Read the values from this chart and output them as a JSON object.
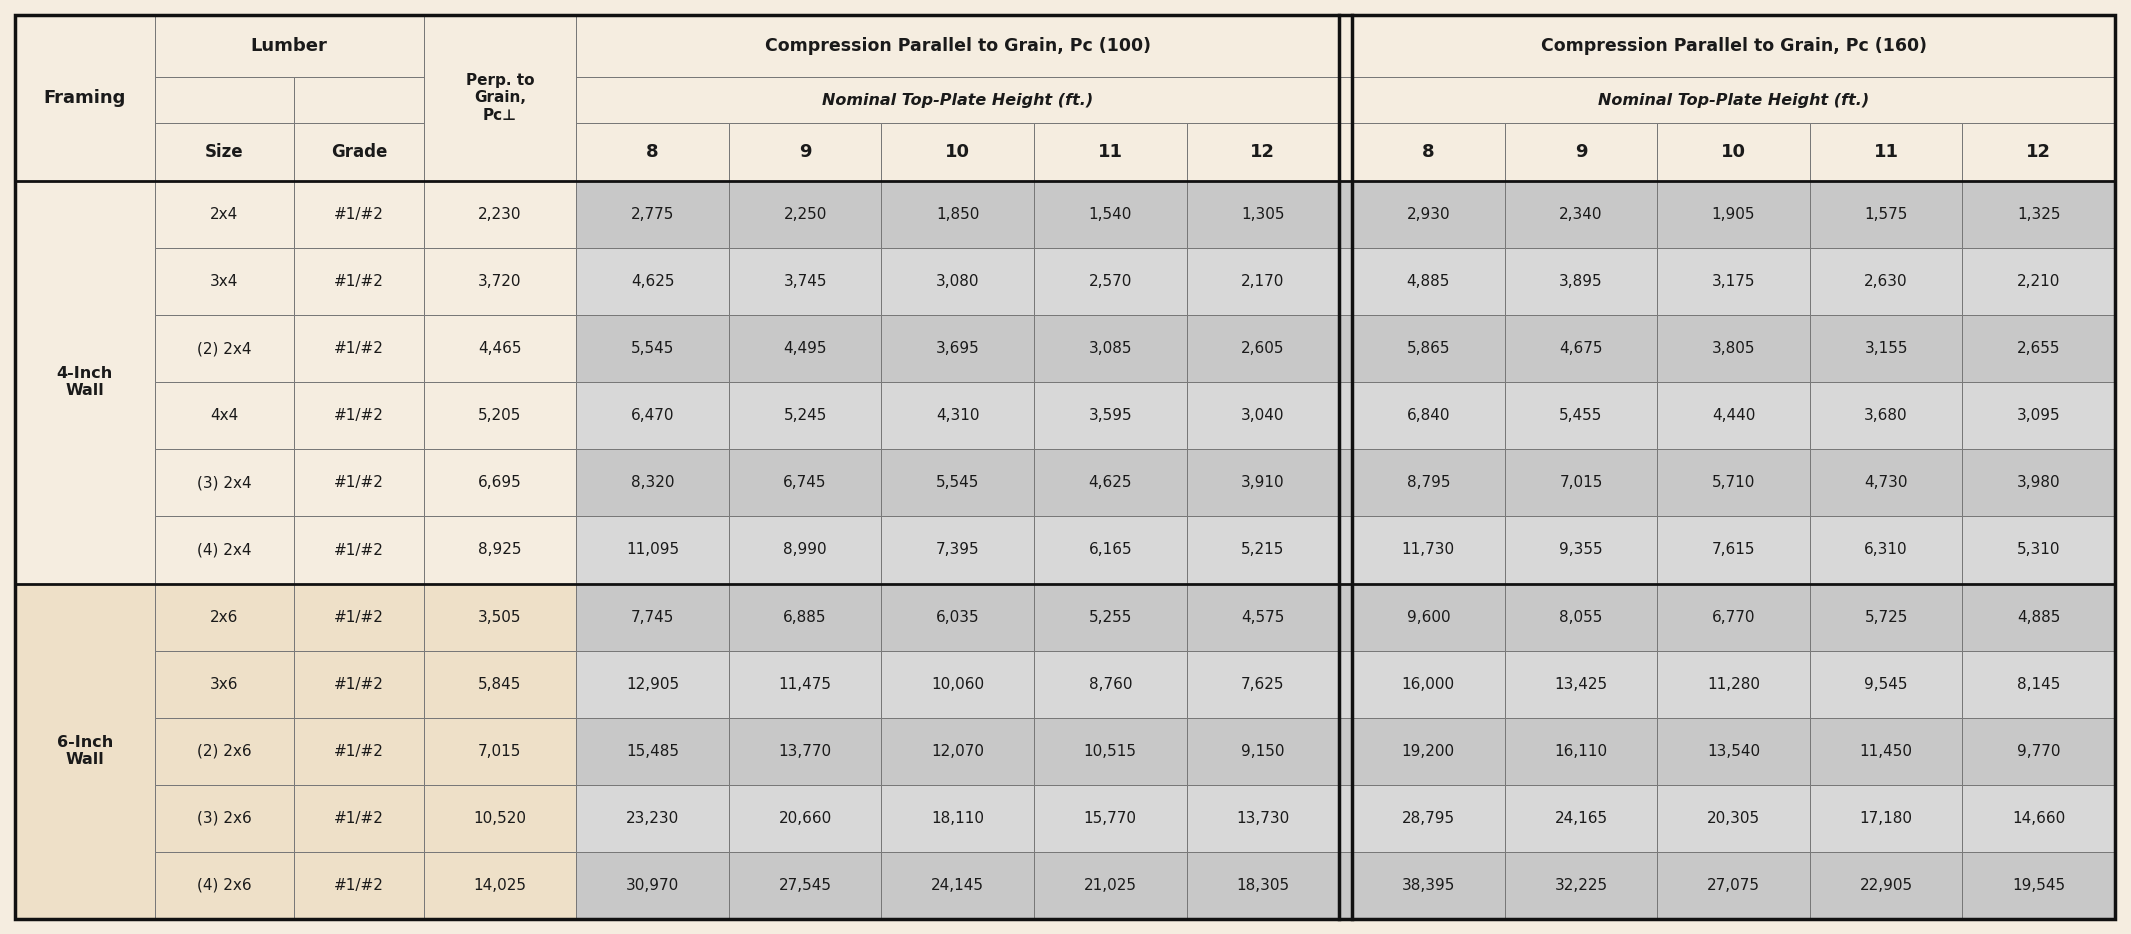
{
  "bg_cream": "#f5ede0",
  "bg_cream_dark": "#eee0c8",
  "bg_gray1": "#c8c8c8",
  "bg_gray2": "#d8d8d8",
  "border_dark": "#333333",
  "border_mid": "#888888",
  "text_dark": "#1a1a1a",
  "framing_groups": [
    {
      "label": "4-Inch\nWall",
      "rows": [
        {
          "size": "2x4",
          "grade": "#1/#2",
          "perp": "2,230",
          "pc100": [
            "2,775",
            "2,250",
            "1,850",
            "1,540",
            "1,305"
          ],
          "pc160": [
            "2,930",
            "2,340",
            "1,905",
            "1,575",
            "1,325"
          ]
        },
        {
          "size": "3x4",
          "grade": "#1/#2",
          "perp": "3,720",
          "pc100": [
            "4,625",
            "3,745",
            "3,080",
            "2,570",
            "2,170"
          ],
          "pc160": [
            "4,885",
            "3,895",
            "3,175",
            "2,630",
            "2,210"
          ]
        },
        {
          "size": "(2) 2x4",
          "grade": "#1/#2",
          "perp": "4,465",
          "pc100": [
            "5,545",
            "4,495",
            "3,695",
            "3,085",
            "2,605"
          ],
          "pc160": [
            "5,865",
            "4,675",
            "3,805",
            "3,155",
            "2,655"
          ]
        },
        {
          "size": "4x4",
          "grade": "#1/#2",
          "perp": "5,205",
          "pc100": [
            "6,470",
            "5,245",
            "4,310",
            "3,595",
            "3,040"
          ],
          "pc160": [
            "6,840",
            "5,455",
            "4,440",
            "3,680",
            "3,095"
          ]
        },
        {
          "size": "(3) 2x4",
          "grade": "#1/#2",
          "perp": "6,695",
          "pc100": [
            "8,320",
            "6,745",
            "5,545",
            "4,625",
            "3,910"
          ],
          "pc160": [
            "8,795",
            "7,015",
            "5,710",
            "4,730",
            "3,980"
          ]
        },
        {
          "size": "(4) 2x4",
          "grade": "#1/#2",
          "perp": "8,925",
          "pc100": [
            "11,095",
            "8,990",
            "7,395",
            "6,165",
            "5,215"
          ],
          "pc160": [
            "11,730",
            "9,355",
            "7,615",
            "6,310",
            "5,310"
          ]
        }
      ]
    },
    {
      "label": "6-Inch\nWall",
      "rows": [
        {
          "size": "2x6",
          "grade": "#1/#2",
          "perp": "3,505",
          "pc100": [
            "7,745",
            "6,885",
            "6,035",
            "5,255",
            "4,575"
          ],
          "pc160": [
            "9,600",
            "8,055",
            "6,770",
            "5,725",
            "4,885"
          ]
        },
        {
          "size": "3x6",
          "grade": "#1/#2",
          "perp": "5,845",
          "pc100": [
            "12,905",
            "11,475",
            "10,060",
            "8,760",
            "7,625"
          ],
          "pc160": [
            "16,000",
            "13,425",
            "11,280",
            "9,545",
            "8,145"
          ]
        },
        {
          "size": "(2) 2x6",
          "grade": "#1/#2",
          "perp": "7,015",
          "pc100": [
            "15,485",
            "13,770",
            "12,070",
            "10,515",
            "9,150"
          ],
          "pc160": [
            "19,200",
            "16,110",
            "13,540",
            "11,450",
            "9,770"
          ]
        },
        {
          "size": "(3) 2x6",
          "grade": "#1/#2",
          "perp": "10,520",
          "pc100": [
            "23,230",
            "20,660",
            "18,110",
            "15,770",
            "13,730"
          ],
          "pc160": [
            "28,795",
            "24,165",
            "20,305",
            "17,180",
            "14,660"
          ]
        },
        {
          "size": "(4) 2x6",
          "grade": "#1/#2",
          "perp": "14,025",
          "pc100": [
            "30,970",
            "27,545",
            "24,145",
            "21,025",
            "18,305"
          ],
          "pc160": [
            "38,395",
            "32,225",
            "27,075",
            "22,905",
            "19,545"
          ]
        }
      ]
    }
  ]
}
